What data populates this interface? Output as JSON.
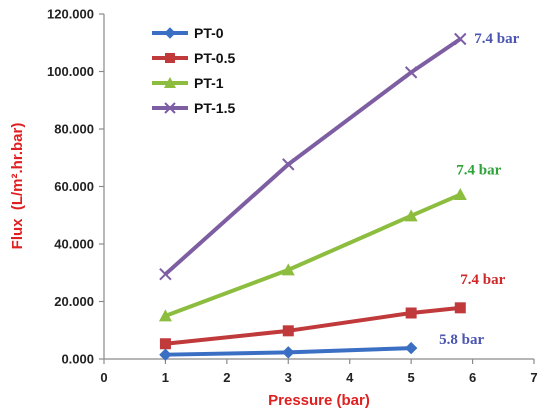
{
  "chart_data": {
    "type": "line",
    "xlabel": "Pressure (bar)",
    "ylabel": "Flux  (L/m².hr.bar)",
    "xlim": [
      0,
      7
    ],
    "ylim": [
      0,
      120
    ],
    "x_ticks": [
      "0",
      "1",
      "2",
      "3",
      "4",
      "5",
      "6",
      "7"
    ],
    "y_ticks": [
      "0.000",
      "20.000",
      "40.000",
      "60.000",
      "80.000",
      "100.000",
      "120.000"
    ],
    "grid": false,
    "legend_position": "top-left",
    "axis_title_color": "#e02020",
    "series": [
      {
        "name": "PT-0",
        "color": "#3a6fc4",
        "marker": "diamond",
        "x": [
          1,
          3,
          5
        ],
        "y": [
          1.5,
          2.3,
          3.8
        ]
      },
      {
        "name": "PT-0.5",
        "color": "#c0393b",
        "marker": "square",
        "x": [
          1,
          3,
          5,
          5.8
        ],
        "y": [
          5.3,
          9.8,
          16.0,
          17.8
        ]
      },
      {
        "name": "PT-1",
        "color": "#8cbd3f",
        "marker": "triangle",
        "x": [
          1,
          3,
          5,
          5.8
        ],
        "y": [
          15.0,
          31.0,
          49.8,
          57.2
        ]
      },
      {
        "name": "PT-1.5",
        "color": "#7e5ea3",
        "marker": "x",
        "x": [
          1,
          3,
          5,
          5.8
        ],
        "y": [
          29.5,
          67.7,
          99.7,
          111.3
        ]
      }
    ],
    "annotations": [
      {
        "text": "7.4 bar",
        "color": "#4a55b0",
        "series": "PT-1.5"
      },
      {
        "text": "7.4 bar",
        "color": "#2ea33a",
        "series": "PT-1"
      },
      {
        "text": "7.4 bar",
        "color": "#d02828",
        "series": "PT-0.5"
      },
      {
        "text": "5.8 bar",
        "color": "#4a55b0",
        "series": "PT-0"
      }
    ]
  }
}
